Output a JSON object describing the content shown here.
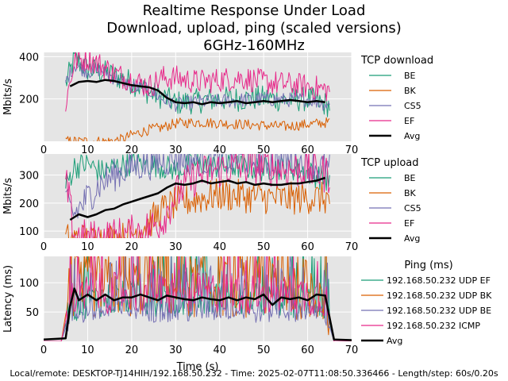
{
  "title_lines": [
    "Realtime Response Under Load",
    "Download, upload, ping (scaled versions)",
    "6GHz-160MHz"
  ],
  "footer": "Local/remote: DESKTOP-TJ14HIH/192.168.50.232 - Time: 2025-02-07T11:08:50.336466 - Length/step: 60s/0.20s",
  "colors": {
    "teal": "#1b9e77",
    "orange": "#d95f02",
    "purple": "#7570b3",
    "pink": "#e7298a",
    "black": "#000000",
    "panel_bg": "#e5e5e5",
    "grid": "#ffffff"
  },
  "chart_data": [
    {
      "type": "line",
      "title": "TCP download",
      "xlabel": "",
      "ylabel": "Mbits/s",
      "xlim": [
        0,
        70
      ],
      "ylim": [
        0,
        420
      ],
      "xticks": [
        "0",
        "10",
        "20",
        "30",
        "40",
        "50",
        "60",
        "70"
      ],
      "yticks": [
        200,
        400
      ],
      "legend_title": "TCP download",
      "series": [
        {
          "name": "BE",
          "color": "#1b9e77",
          "x": [
            5,
            7,
            10,
            13,
            16,
            20,
            24,
            27,
            30,
            35,
            40,
            45,
            50,
            55,
            60,
            65
          ],
          "values": [
            270,
            390,
            340,
            330,
            310,
            280,
            230,
            210,
            180,
            190,
            200,
            200,
            205,
            195,
            200,
            170
          ]
        },
        {
          "name": "BK",
          "color": "#d95f02",
          "x": [
            5,
            10,
            15,
            18,
            20,
            24,
            27,
            30,
            35,
            40,
            45,
            50,
            55,
            60,
            65
          ],
          "values": [
            0,
            0,
            0,
            10,
            30,
            55,
            65,
            85,
            90,
            85,
            80,
            75,
            70,
            80,
            90
          ]
        },
        {
          "name": "CS5",
          "color": "#7570b3",
          "x": [
            5,
            7,
            10,
            13,
            16,
            20,
            24,
            27,
            30,
            35,
            40,
            45,
            50,
            55,
            60,
            65
          ],
          "values": [
            280,
            360,
            330,
            340,
            300,
            260,
            240,
            200,
            175,
            185,
            190,
            195,
            200,
            195,
            200,
            170
          ]
        },
        {
          "name": "EF",
          "color": "#e7298a",
          "x": [
            5,
            7,
            10,
            13,
            16,
            20,
            24,
            27,
            30,
            35,
            40,
            45,
            50,
            55,
            60,
            65
          ],
          "values": [
            180,
            380,
            390,
            360,
            320,
            290,
            260,
            300,
            300,
            280,
            290,
            300,
            280,
            270,
            260,
            240
          ]
        },
        {
          "name": "Avg",
          "color": "#000000",
          "x": [
            6,
            8,
            10,
            12,
            14,
            16,
            18,
            20,
            22,
            24,
            26,
            28,
            30,
            32,
            34,
            36,
            38,
            40,
            42,
            44,
            46,
            48,
            50,
            52,
            54,
            56,
            58,
            60,
            62,
            64
          ],
          "values": [
            260,
            280,
            285,
            280,
            290,
            285,
            275,
            265,
            260,
            255,
            240,
            205,
            185,
            180,
            185,
            175,
            185,
            180,
            185,
            190,
            180,
            185,
            190,
            185,
            190,
            195,
            190,
            185,
            190,
            185
          ]
        }
      ]
    },
    {
      "type": "line",
      "title": "TCP upload",
      "xlabel": "",
      "ylabel": "Mbits/s",
      "xlim": [
        0,
        70
      ],
      "ylim": [
        75,
        375
      ],
      "xticks": [
        "0",
        "10",
        "20",
        "30",
        "40",
        "50",
        "60",
        "70"
      ],
      "yticks": [
        100,
        200,
        300
      ],
      "legend_title": "TCP upload",
      "series": [
        {
          "name": "BE",
          "color": "#1b9e77",
          "x": [
            5,
            7,
            10,
            13,
            16,
            20,
            24,
            27,
            30,
            35,
            40,
            45,
            50,
            55,
            60,
            65
          ],
          "values": [
            260,
            330,
            340,
            310,
            330,
            340,
            340,
            330,
            320,
            340,
            330,
            330,
            320,
            330,
            310,
            280
          ]
        },
        {
          "name": "BK",
          "color": "#d95f02",
          "x": [
            5,
            10,
            15,
            18,
            20,
            24,
            27,
            30,
            35,
            40,
            45,
            50,
            55,
            60,
            65
          ],
          "values": [
            70,
            70,
            70,
            75,
            90,
            130,
            175,
            200,
            215,
            230,
            225,
            220,
            215,
            220,
            215
          ]
        },
        {
          "name": "CS5",
          "color": "#7570b3",
          "x": [
            5,
            7,
            10,
            13,
            16,
            20,
            24,
            27,
            30,
            35,
            40,
            45,
            50,
            55,
            60,
            65
          ],
          "values": [
            200,
            160,
            220,
            270,
            300,
            330,
            340,
            350,
            360,
            355,
            350,
            355,
            350,
            350,
            340,
            320
          ]
        },
        {
          "name": "EF",
          "color": "#e7298a",
          "x": [
            5,
            7,
            10,
            13,
            16,
            20,
            24,
            27,
            30,
            35,
            40,
            45,
            50,
            55,
            60,
            65
          ],
          "values": [
            280,
            90,
            70,
            75,
            80,
            90,
            110,
            140,
            230,
            300,
            320,
            330,
            330,
            320,
            320,
            300
          ]
        },
        {
          "name": "Avg",
          "color": "#000000",
          "x": [
            6,
            7,
            8,
            10,
            12,
            14,
            16,
            18,
            20,
            22,
            24,
            26,
            28,
            30,
            32,
            34,
            36,
            38,
            40,
            42,
            44,
            46,
            48,
            50,
            52,
            54,
            56,
            58,
            60,
            62,
            64
          ],
          "values": [
            140,
            150,
            160,
            150,
            160,
            175,
            180,
            195,
            205,
            215,
            225,
            235,
            255,
            270,
            265,
            270,
            280,
            270,
            275,
            280,
            270,
            275,
            265,
            270,
            265,
            265,
            270,
            270,
            275,
            280,
            290
          ]
        }
      ]
    },
    {
      "type": "line",
      "title": "Ping (ms)",
      "xlabel": "Time (s)",
      "ylabel": "Latency (ms)",
      "xlim": [
        0,
        70
      ],
      "ylim": [
        0,
        145
      ],
      "xticks": [
        "0",
        "10",
        "20",
        "30",
        "40",
        "50",
        "60",
        "70"
      ],
      "yticks": [
        50,
        100
      ],
      "legend_title": "Ping (ms)",
      "series": [
        {
          "name": "192.168.50.232 UDP EF",
          "color": "#1b9e77",
          "x": [
            0,
            4,
            6,
            10,
            20,
            30,
            40,
            50,
            60,
            64,
            66,
            70
          ],
          "values": [
            0,
            0,
            60,
            70,
            75,
            70,
            75,
            70,
            70,
            65,
            0,
            0
          ]
        },
        {
          "name": "192.168.50.232 UDP BK",
          "color": "#d95f02",
          "x": [
            0,
            4,
            6,
            10,
            20,
            30,
            40,
            50,
            60,
            64,
            66,
            70
          ],
          "values": [
            0,
            0,
            90,
            95,
            95,
            95,
            95,
            95,
            90,
            90,
            0,
            0
          ]
        },
        {
          "name": "192.168.50.232 UDP BE",
          "color": "#7570b3",
          "x": [
            0,
            4,
            6,
            10,
            20,
            30,
            40,
            50,
            60,
            64,
            66,
            70
          ],
          "values": [
            0,
            0,
            45,
            50,
            55,
            50,
            55,
            50,
            55,
            50,
            0,
            0
          ]
        },
        {
          "name": "192.168.50.232 ICMP",
          "color": "#e7298a",
          "x": [
            0,
            4,
            6,
            10,
            20,
            30,
            40,
            50,
            60,
            64,
            66,
            70
          ],
          "values": [
            0,
            0,
            70,
            80,
            85,
            80,
            85,
            80,
            80,
            75,
            0,
            0
          ]
        },
        {
          "name": "Avg",
          "color": "#000000",
          "x": [
            0,
            5,
            6,
            7,
            8,
            10,
            12,
            14,
            16,
            18,
            20,
            22,
            24,
            26,
            28,
            30,
            32,
            34,
            36,
            38,
            40,
            42,
            44,
            46,
            48,
            50,
            52,
            54,
            56,
            58,
            60,
            62,
            64,
            65,
            66,
            70
          ],
          "values": [
            3,
            5,
            60,
            90,
            70,
            80,
            70,
            80,
            70,
            75,
            75,
            80,
            75,
            70,
            78,
            75,
            72,
            70,
            75,
            72,
            70,
            75,
            70,
            75,
            72,
            80,
            62,
            75,
            72,
            75,
            70,
            80,
            78,
            40,
            3,
            2
          ]
        }
      ]
    }
  ]
}
